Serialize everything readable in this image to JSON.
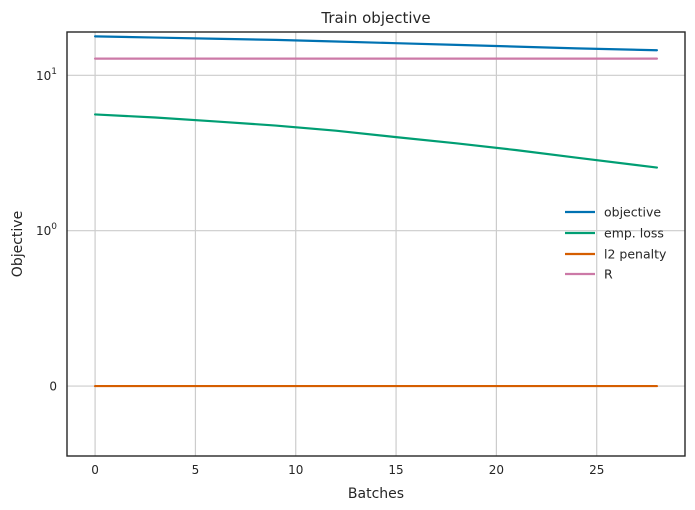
{
  "chart_data": {
    "type": "line",
    "title": "Train objective",
    "xlabel": "Batches",
    "ylabel": "Objective",
    "xlim": [
      -1.4,
      29.4
    ],
    "y_scale": "symlog",
    "ylim": [
      -0.45,
      19
    ],
    "x_ticks": [
      0,
      5,
      10,
      15,
      20,
      25
    ],
    "y_ticks": [
      {
        "value": 0,
        "label": "0"
      },
      {
        "value": 1,
        "label": "10",
        "exp": "0"
      },
      {
        "value": 10,
        "label": "10",
        "exp": "1"
      }
    ],
    "grid": true,
    "legend_position": "center-right",
    "series": [
      {
        "name": "objective",
        "color": "#0072b2",
        "x": [
          0,
          3,
          6,
          9,
          12,
          15,
          18,
          21,
          24,
          28
        ],
        "y": [
          17.8,
          17.5,
          17.2,
          16.9,
          16.5,
          16.1,
          15.7,
          15.3,
          14.9,
          14.5
        ]
      },
      {
        "name": "emp. loss",
        "color": "#009e73",
        "x": [
          0,
          3,
          6,
          9,
          12,
          15,
          18,
          21,
          24,
          28
        ],
        "y": [
          5.6,
          5.35,
          5.05,
          4.75,
          4.4,
          4.0,
          3.65,
          3.3,
          2.95,
          2.55
        ]
      },
      {
        "name": "l2 penalty",
        "color": "#d55e00",
        "x": [
          0,
          28
        ],
        "y": [
          0,
          0
        ]
      },
      {
        "name": "R",
        "color": "#cc79a7",
        "x": [
          0,
          28
        ],
        "y": [
          12.8,
          12.8
        ]
      }
    ]
  }
}
